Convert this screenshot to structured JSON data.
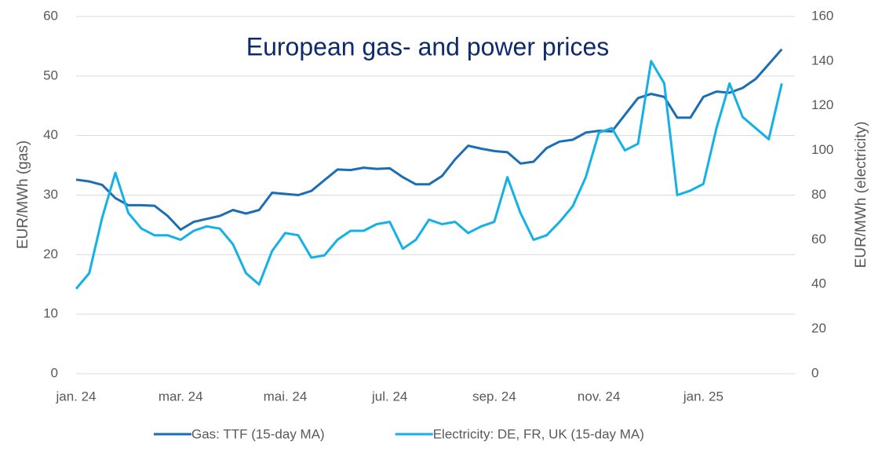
{
  "chart_data": {
    "type": "line",
    "title": "European gas- and power prices",
    "y_label": "EUR/MWh (gas)",
    "y2_label": "EUR/MWh (electricity)",
    "categories": [
      "jan. 24",
      null,
      null,
      null,
      null,
      null,
      null,
      null,
      "mar. 24",
      null,
      null,
      null,
      null,
      null,
      null,
      null,
      "mai. 24",
      null,
      null,
      null,
      null,
      null,
      null,
      null,
      "jul. 24",
      null,
      null,
      null,
      null,
      null,
      null,
      null,
      "sep. 24",
      null,
      null,
      null,
      null,
      null,
      null,
      null,
      "nov. 24",
      null,
      null,
      null,
      null,
      null,
      null,
      null,
      "jan. 25",
      null,
      null,
      null,
      null,
      null,
      null
    ],
    "series": [
      {
        "name": "Gas: TTF (15-day MA)",
        "color": "#1d6db3",
        "axis": "y",
        "values": [
          32.6,
          32.3,
          31.7,
          29.5,
          28.3,
          28.3,
          28.2,
          26.5,
          24.2,
          25.5,
          26,
          26.5,
          27.5,
          26.9,
          27.5,
          30.4,
          30.2,
          30,
          30.7,
          32.5,
          34.3,
          34.2,
          34.6,
          34.4,
          34.5,
          33,
          31.8,
          31.8,
          33.2,
          36,
          38.3,
          37.8,
          37.4,
          37.2,
          35.3,
          35.6,
          37.9,
          39,
          39.3,
          40.5,
          40.8,
          40.7,
          43.5,
          46.3,
          47,
          46.5,
          43,
          43,
          46.5,
          47.4,
          47.2,
          48,
          49.5,
          52,
          54.5
        ]
      },
      {
        "name": "Electricity: DE, FR, UK (15-day MA)",
        "color": "#14b1e7",
        "axis": "y2",
        "values": [
          38,
          45,
          70,
          90,
          72,
          65,
          62,
          62,
          60,
          64,
          66,
          65,
          58,
          45,
          40,
          55,
          63,
          62,
          52,
          53,
          60,
          64,
          64,
          67,
          68,
          56,
          60,
          69,
          67,
          68,
          63,
          66,
          68,
          88,
          72,
          60,
          62,
          68,
          75,
          88,
          108,
          110,
          100,
          103,
          140,
          130,
          80,
          82,
          85,
          110,
          130,
          115,
          110,
          105,
          130
        ]
      }
    ],
    "ylim": [
      0,
      60
    ],
    "yticks": [
      0,
      10,
      20,
      30,
      40,
      50,
      60
    ],
    "y2lim": [
      0,
      160
    ],
    "y2ticks": [
      0,
      20,
      40,
      60,
      80,
      100,
      120,
      140,
      160
    ],
    "grid": true,
    "legend": "bottom"
  }
}
